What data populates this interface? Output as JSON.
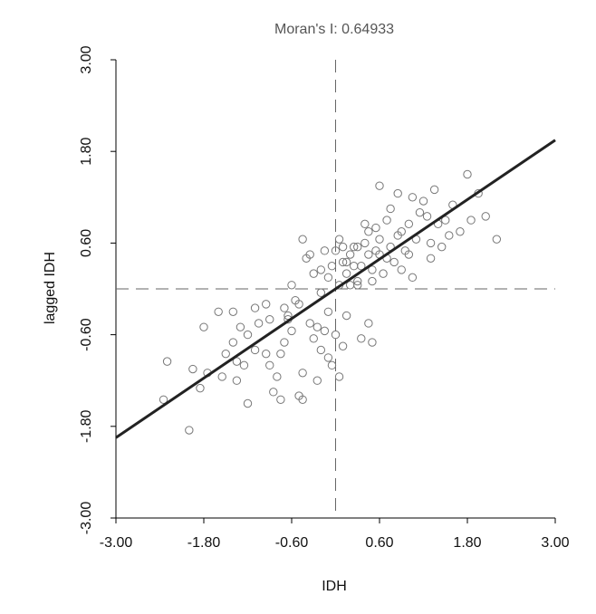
{
  "chart_data": {
    "type": "scatter",
    "title": "Moran's I: 0.64933",
    "xlabel": "IDH",
    "ylabel": "lagged IDH",
    "xlim": [
      -3.0,
      3.0
    ],
    "ylim": [
      -3.0,
      3.0
    ],
    "xticks": [
      "-3.00",
      "-1.80",
      "-0.60",
      "0.60",
      "1.80",
      "3.00"
    ],
    "yticks": [
      "-3.00",
      "-1.80",
      "-0.60",
      "0.60",
      "1.80",
      "3.00"
    ],
    "reference_lines": {
      "x": 0.0,
      "y": 0.0
    },
    "regression": {
      "slope": 0.64933,
      "intercept": 0.0
    },
    "points": [
      [
        -2.35,
        -1.45
      ],
      [
        -2.3,
        -0.95
      ],
      [
        -2.0,
        -1.85
      ],
      [
        -1.95,
        -1.05
      ],
      [
        -1.85,
        -1.3
      ],
      [
        -1.8,
        -0.5
      ],
      [
        -1.75,
        -1.1
      ],
      [
        -1.55,
        -1.15
      ],
      [
        -1.5,
        -0.85
      ],
      [
        -1.4,
        -0.7
      ],
      [
        -1.35,
        -0.95
      ],
      [
        -1.35,
        -1.2
      ],
      [
        -1.3,
        -0.5
      ],
      [
        -1.25,
        -1.0
      ],
      [
        -1.2,
        -1.5
      ],
      [
        -1.2,
        -0.6
      ],
      [
        -1.1,
        -0.25
      ],
      [
        -1.1,
        -0.8
      ],
      [
        -1.05,
        -0.45
      ],
      [
        -0.95,
        -0.85
      ],
      [
        -0.9,
        -0.4
      ],
      [
        -0.9,
        -1.0
      ],
      [
        -0.8,
        -1.15
      ],
      [
        -0.75,
        -0.85
      ],
      [
        -0.7,
        -0.7
      ],
      [
        -0.65,
        -0.4
      ],
      [
        -0.65,
        -0.35
      ],
      [
        -0.6,
        0.05
      ],
      [
        -0.55,
        -0.15
      ],
      [
        -0.5,
        -0.2
      ],
      [
        -0.5,
        -1.4
      ],
      [
        -0.45,
        -1.1
      ],
      [
        -0.35,
        -0.45
      ],
      [
        -0.3,
        -0.65
      ],
      [
        -0.25,
        -1.2
      ],
      [
        -0.2,
        -0.8
      ],
      [
        -0.15,
        -0.55
      ],
      [
        -0.1,
        -0.9
      ],
      [
        -0.05,
        -1.0
      ],
      [
        0.0,
        -0.6
      ],
      [
        0.05,
        -1.15
      ],
      [
        0.1,
        -0.75
      ],
      [
        0.15,
        -0.35
      ],
      [
        -0.45,
        -1.45
      ],
      [
        -0.85,
        -1.35
      ],
      [
        -0.3,
        0.2
      ],
      [
        -0.2,
        0.25
      ],
      [
        -0.1,
        0.15
      ],
      [
        -0.05,
        0.3
      ],
      [
        0.0,
        0.5
      ],
      [
        0.05,
        0.65
      ],
      [
        0.1,
        0.35
      ],
      [
        0.15,
        0.2
      ],
      [
        0.2,
        0.45
      ],
      [
        0.25,
        0.55
      ],
      [
        0.3,
        0.1
      ],
      [
        0.35,
        0.3
      ],
      [
        0.4,
        0.6
      ],
      [
        0.45,
        0.75
      ],
      [
        0.5,
        0.25
      ],
      [
        0.55,
        0.5
      ],
      [
        0.6,
        0.65
      ],
      [
        0.65,
        0.2
      ],
      [
        0.7,
        0.4
      ],
      [
        0.75,
        0.55
      ],
      [
        0.8,
        0.35
      ],
      [
        0.85,
        0.7
      ],
      [
        0.9,
        0.25
      ],
      [
        0.95,
        0.5
      ],
      [
        1.0,
        0.45
      ],
      [
        1.05,
        0.15
      ],
      [
        1.1,
        0.65
      ],
      [
        1.15,
        1.0
      ],
      [
        1.2,
        1.15
      ],
      [
        1.25,
        0.95
      ],
      [
        1.3,
        0.6
      ],
      [
        1.35,
        1.3
      ],
      [
        1.4,
        0.85
      ],
      [
        1.45,
        0.55
      ],
      [
        1.5,
        0.9
      ],
      [
        1.55,
        0.7
      ],
      [
        1.6,
        1.1
      ],
      [
        1.7,
        0.75
      ],
      [
        1.8,
        1.5
      ],
      [
        1.85,
        0.9
      ],
      [
        1.95,
        1.25
      ],
      [
        2.05,
        0.95
      ],
      [
        2.2,
        0.65
      ],
      [
        0.6,
        1.35
      ],
      [
        0.85,
        1.25
      ],
      [
        1.05,
        1.2
      ],
      [
        0.75,
        1.05
      ],
      [
        0.45,
        -0.45
      ],
      [
        0.5,
        -0.7
      ],
      [
        0.35,
        -0.65
      ],
      [
        0.3,
        0.05
      ],
      [
        0.2,
        0.05
      ],
      [
        -0.1,
        -0.3
      ],
      [
        -0.25,
        -0.5
      ],
      [
        -0.45,
        0.65
      ],
      [
        -0.4,
        0.4
      ],
      [
        -0.35,
        0.45
      ],
      [
        -0.15,
        0.5
      ],
      [
        0.1,
        0.55
      ],
      [
        0.4,
        0.85
      ],
      [
        0.55,
        0.8
      ],
      [
        0.7,
        0.9
      ],
      [
        0.9,
        0.75
      ],
      [
        1.0,
        0.85
      ],
      [
        0.25,
        0.3
      ],
      [
        0.45,
        0.45
      ],
      [
        0.6,
        0.45
      ],
      [
        -0.7,
        -0.25
      ],
      [
        -0.95,
        -0.2
      ],
      [
        -1.6,
        -0.3
      ],
      [
        -1.4,
        -0.3
      ],
      [
        -0.75,
        -1.45
      ],
      [
        -0.6,
        -0.55
      ],
      [
        0.05,
        0.05
      ],
      [
        0.5,
        0.1
      ],
      [
        1.3,
        0.4
      ],
      [
        0.15,
        0.35
      ],
      [
        -0.2,
        -0.05
      ],
      [
        0.3,
        0.55
      ]
    ]
  }
}
